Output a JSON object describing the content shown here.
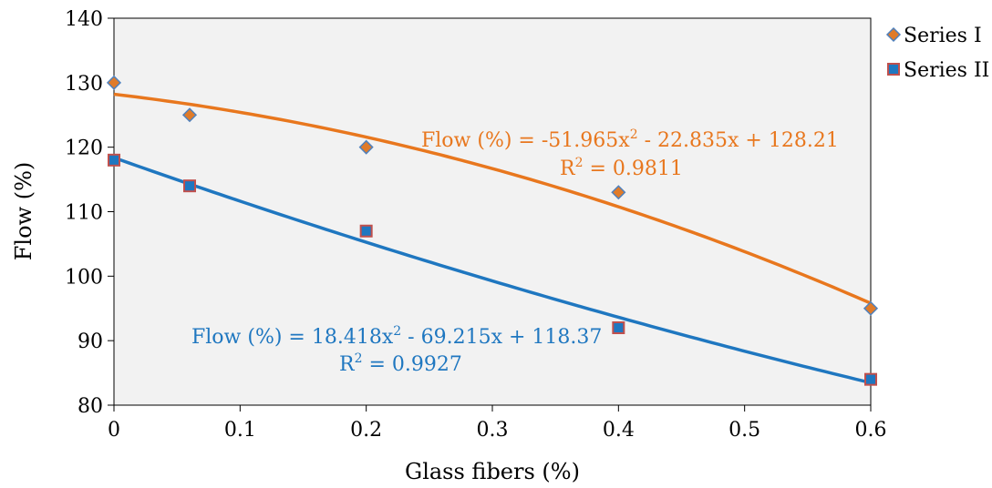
{
  "chart_data": {
    "type": "scatter",
    "title": "",
    "xlabel": "Glass fibers (%)",
    "ylabel": "Flow (%)",
    "xlim": [
      0,
      0.6
    ],
    "ylim": [
      80,
      140
    ],
    "xticks": [
      "0",
      "0.1",
      "0.2",
      "0.3",
      "0.4",
      "0.5",
      "0.6"
    ],
    "yticks": [
      "80",
      "90",
      "100",
      "110",
      "120",
      "130",
      "140"
    ],
    "grid": false,
    "legend_position": "right",
    "plot_background": "#f2f2f2",
    "series": [
      {
        "name": "Series I",
        "marker": "diamond",
        "marker_color": "#e07b29",
        "marker_edge": "#4f81bd",
        "line_color": "#e8771e",
        "x": [
          0,
          0.06,
          0.2,
          0.4,
          0.6
        ],
        "y": [
          130,
          125,
          120,
          113,
          95
        ],
        "trendline": {
          "type": "polynomial",
          "coefficients": [
            -51.965,
            -22.835,
            128.21
          ],
          "equation_prefix": "Flow (%) = -51.965x",
          "equation_suffix": " - 22.835x + 128.21",
          "r2_prefix": "R",
          "r2_suffix": " = 0.9811"
        }
      },
      {
        "name": "Series II",
        "marker": "square",
        "marker_color": "#1f77c0",
        "marker_edge": "#c0504d",
        "line_color": "#1f77c0",
        "x": [
          0,
          0.06,
          0.2,
          0.4,
          0.6
        ],
        "y": [
          118,
          114,
          107,
          92,
          84
        ],
        "trendline": {
          "type": "polynomial",
          "coefficients": [
            18.418,
            -69.215,
            118.37
          ],
          "equation_prefix": "Flow (%) = 18.418x",
          "equation_suffix": " - 69.215x + 118.37",
          "r2_prefix": "R",
          "r2_suffix": " = 0.9927"
        }
      }
    ],
    "superscript": "2"
  }
}
